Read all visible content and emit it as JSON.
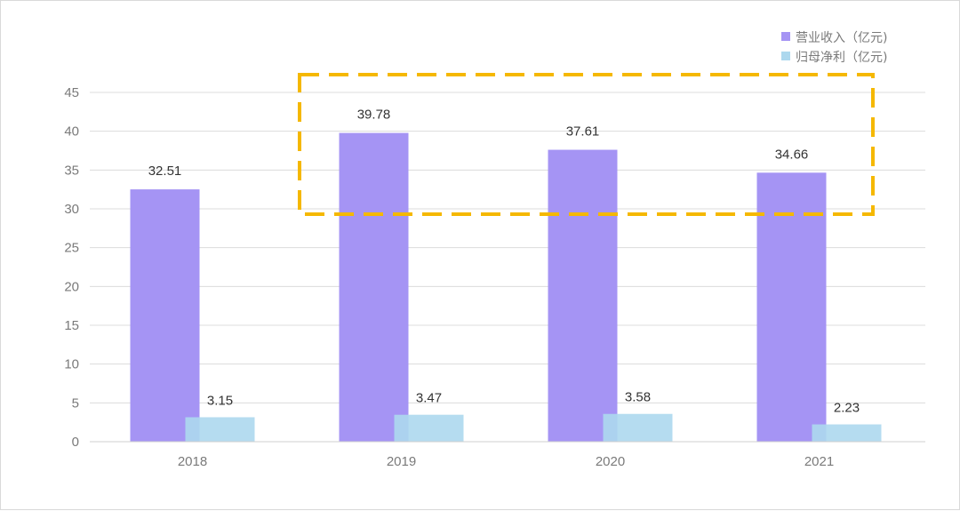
{
  "chart_data": {
    "type": "bar",
    "categories": [
      "2018",
      "2019",
      "2020",
      "2021"
    ],
    "series": [
      {
        "name": "营业收入（亿元)",
        "values": [
          32.51,
          39.78,
          37.61,
          34.66
        ],
        "color": "#a594f4"
      },
      {
        "name": "归母净利（亿元)",
        "values": [
          3.15,
          3.47,
          3.58,
          2.23
        ],
        "color": "#add8ee"
      }
    ],
    "ylim": [
      0,
      45
    ],
    "yticks": [
      "0",
      "5",
      "10",
      "15",
      "20",
      "25",
      "30",
      "35",
      "40",
      "45"
    ],
    "grid": true,
    "legend_position": "top-right",
    "highlight": {
      "style": "dashed-box",
      "color": "#f5b800",
      "covers_categories": [
        "2019",
        "2020",
        "2021"
      ]
    }
  }
}
